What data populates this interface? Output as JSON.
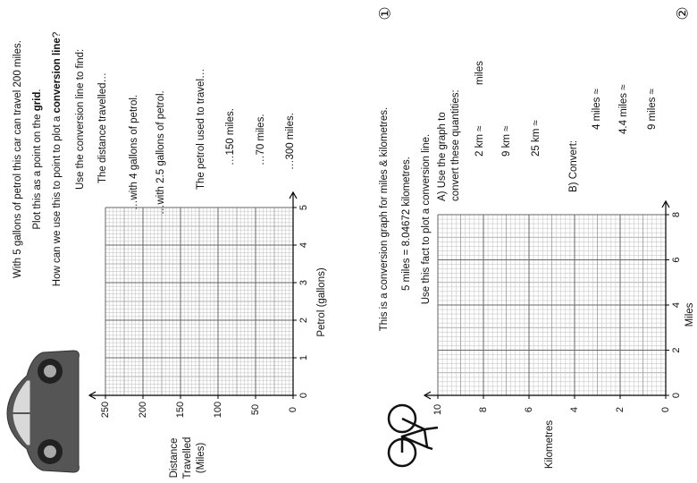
{
  "worksheet_1": {
    "number": "①",
    "intro": [
      "With 5 gallons of petrol this car can travel 200 miles.",
      [
        "Plot this as a point on the ",
        "grid",
        "."
      ],
      [
        "How can we use this to point to plot a ",
        "conversion line",
        "?"
      ]
    ],
    "task": "Use the conversion line to find:",
    "part_a": "The distance travelled…",
    "part_a_items": [
      "…with 4 gallons of petrol.",
      "…with 2.5 gallons of petrol."
    ],
    "part_b": "The petrol used to travel…",
    "part_b_items": [
      "…150 miles.",
      "…70 miles.",
      "…300 miles."
    ],
    "graph": {
      "x_label": "Petrol (gallons)",
      "y_label": [
        "Distance",
        "Travelled",
        "(Miles)"
      ],
      "xlim": [
        0,
        5
      ],
      "xticks": [
        0,
        1,
        2,
        3,
        4,
        5
      ],
      "ylim": [
        0,
        250
      ],
      "yticks": [
        0,
        50,
        100,
        150,
        200,
        250
      ]
    }
  },
  "worksheet_2": {
    "number": "②",
    "intro": [
      "This is a conversion graph for miles & kilometres.",
      "5 miles = 8.04672 kilometres.",
      "Use this fact to plot a conversion line."
    ],
    "part_a": [
      "A) Use the graph to",
      "convert these quantities:"
    ],
    "part_a_items": [
      "2 km ≈",
      "9 km ≈",
      "25 km ≈"
    ],
    "unit": "miles",
    "part_b": "B) Convert:",
    "part_b_items": [
      "4 miles ≈",
      "4.4 miles ≈",
      "9 miles ≈"
    ],
    "graph": {
      "x_label": "Miles",
      "y_label": [
        "Kilometres"
      ],
      "xlim": [
        0,
        8
      ],
      "xticks": [
        0,
        2,
        4,
        6,
        8
      ],
      "ylim": [
        0,
        10
      ],
      "yticks": [
        0,
        2,
        4,
        6,
        8,
        10
      ]
    }
  }
}
